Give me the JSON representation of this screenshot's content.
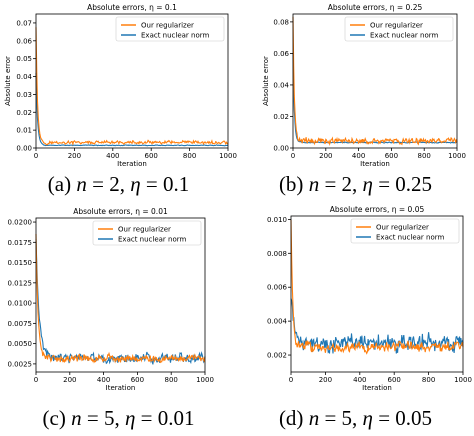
{
  "colors": {
    "regularizer": "#ff7f0e",
    "nuclear": "#1f77b4"
  },
  "chart_data": [
    {
      "type": "line",
      "title": "Absolute errors, η = 0.1",
      "xlabel": "Iteration",
      "ylabel": "Absolute error",
      "xlim": [
        0,
        1000
      ],
      "ylim": [
        0,
        0.075
      ],
      "xticks": [
        "0",
        "200",
        "400",
        "600",
        "800",
        "1000"
      ],
      "yticks": [
        "0.00",
        "0.01",
        "0.02",
        "0.03",
        "0.04",
        "0.05",
        "0.06",
        "0.07"
      ],
      "legend": "top-right",
      "series": [
        {
          "name": "Our regularizer",
          "color": "#ff7f0e",
          "initial": 0.068,
          "settle": 0.003,
          "noise": 0.0013,
          "decay": 8
        },
        {
          "name": "Exact nuclear norm",
          "color": "#1f77b4",
          "initial": 0.042,
          "settle": 0.0015,
          "noise": 0.0003,
          "decay": 8
        }
      ],
      "caption": {
        "label": "(a)",
        "n": "2",
        "eta": "0.1"
      }
    },
    {
      "type": "line",
      "title": "Absolute errors, η = 0.25",
      "xlabel": "Iteration",
      "ylabel": "Absolute error",
      "xlim": [
        0,
        1000
      ],
      "ylim": [
        0,
        0.085
      ],
      "xticks": [
        "0",
        "200",
        "400",
        "600",
        "800",
        "1000"
      ],
      "yticks": [
        "0.00",
        "0.02",
        "0.04",
        "0.06",
        "0.08"
      ],
      "legend": "top-right",
      "series": [
        {
          "name": "Our regularizer",
          "color": "#ff7f0e",
          "initial": 0.083,
          "settle": 0.0045,
          "noise": 0.0025,
          "decay": 8
        },
        {
          "name": "Exact nuclear norm",
          "color": "#1f77b4",
          "initial": 0.06,
          "settle": 0.0035,
          "noise": 0.0004,
          "decay": 8
        }
      ],
      "caption": {
        "label": "(b)",
        "n": "2",
        "eta": "0.25"
      }
    },
    {
      "type": "line",
      "title": "Absolute errors, η = 0.01",
      "xlabel": "Iteration",
      "ylabel": "",
      "xlim": [
        0,
        1000
      ],
      "ylim": [
        0.0015,
        0.0205
      ],
      "xticks": [
        "0",
        "200",
        "400",
        "600",
        "800",
        "1000"
      ],
      "yticks": [
        "0.0025",
        "0.0050",
        "0.0075",
        "0.0100",
        "0.0125",
        "0.0150",
        "0.0175",
        "0.0200"
      ],
      "legend": "top-right",
      "series": [
        {
          "name": "Our regularizer",
          "color": "#ff7f0e",
          "initial": 0.0185,
          "settle": 0.0032,
          "noise": 0.0006,
          "decay": 12
        },
        {
          "name": "Exact nuclear norm",
          "color": "#1f77b4",
          "initial": 0.018,
          "settle": 0.0032,
          "noise": 0.0008,
          "decay": 18
        }
      ],
      "caption": {
        "label": "(c)",
        "n": "5",
        "eta": "0.01"
      }
    },
    {
      "type": "line",
      "title": "Absolute errors, η = 0.05",
      "xlabel": "Iteration",
      "ylabel": "",
      "xlim": [
        0,
        1000
      ],
      "ylim": [
        0.001,
        0.0102
      ],
      "xticks": [
        "0",
        "200",
        "400",
        "600",
        "800",
        "1000"
      ],
      "yticks": [
        "0.002",
        "0.004",
        "0.006",
        "0.008",
        "0.010"
      ],
      "legend": "top-right",
      "series": [
        {
          "name": "Our regularizer",
          "color": "#ff7f0e",
          "initial": 0.01,
          "settle": 0.0025,
          "noise": 0.0004,
          "decay": 10
        },
        {
          "name": "Exact nuclear norm",
          "color": "#1f77b4",
          "initial": 0.0055,
          "settle": 0.0027,
          "noise": 0.0007,
          "decay": 20
        }
      ],
      "caption": {
        "label": "(d)",
        "n": "5",
        "eta": "0.05"
      }
    }
  ]
}
